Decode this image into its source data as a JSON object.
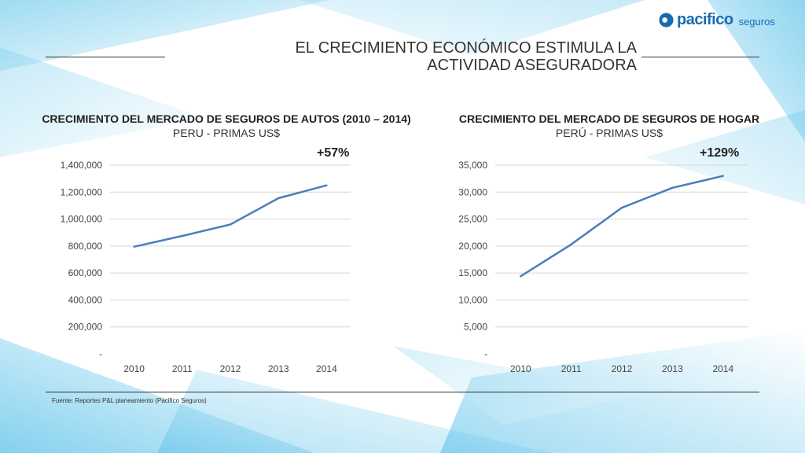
{
  "brand": {
    "name": "pacifico",
    "suffix": "seguros",
    "color": "#1a6ab0",
    "accent": "#8cc63f"
  },
  "header": {
    "title_line1": "EL CRECIMIENTO ECONÓMICO ESTIMULA LA",
    "title_line2": "ACTIVIDAD ASEGURADORA"
  },
  "footer": {
    "source": "Fuente: Reportes P&L planeamiento (Pacifico Seguros)"
  },
  "chart_data": [
    {
      "type": "line",
      "title": "CRECIMIENTO DEL MERCADO DE SEGUROS DE AUTOS (2010 – 2014)",
      "subtitle": "PERU - PRIMAS US$",
      "annotation": "+57%",
      "x": [
        "2010",
        "2011",
        "2012",
        "2013",
        "2014"
      ],
      "series": [
        {
          "values": [
            795000,
            875000,
            960000,
            1155000,
            1250000
          ],
          "color": "#4a7ebb"
        }
      ],
      "ylim": [
        0,
        1400000
      ],
      "yticks": [
        0,
        200000,
        400000,
        600000,
        800000,
        1000000,
        1200000,
        1400000
      ],
      "ytick_labels": [
        "-",
        "200,000",
        "400,000",
        "600,000",
        "800,000",
        "1,000,000",
        "1,200,000",
        "1,400,000"
      ],
      "grid": true
    },
    {
      "type": "line",
      "title": "CRECIMIENTO DEL MERCADO DE SEGUROS DE HOGAR",
      "subtitle": "PERÚ - PRIMAS US$",
      "annotation": "+129%",
      "x": [
        "2010",
        "2011",
        "2012",
        "2013",
        "2014"
      ],
      "series": [
        {
          "values": [
            14400,
            20300,
            27100,
            30800,
            33000
          ],
          "color": "#4a7ebb"
        }
      ],
      "ylim": [
        0,
        35000
      ],
      "yticks": [
        0,
        5000,
        10000,
        15000,
        20000,
        25000,
        30000,
        35000
      ],
      "ytick_labels": [
        "-",
        "5,000",
        "10,000",
        "15,000",
        "20,000",
        "25,000",
        "30,000",
        "35,000"
      ],
      "grid": true
    }
  ]
}
